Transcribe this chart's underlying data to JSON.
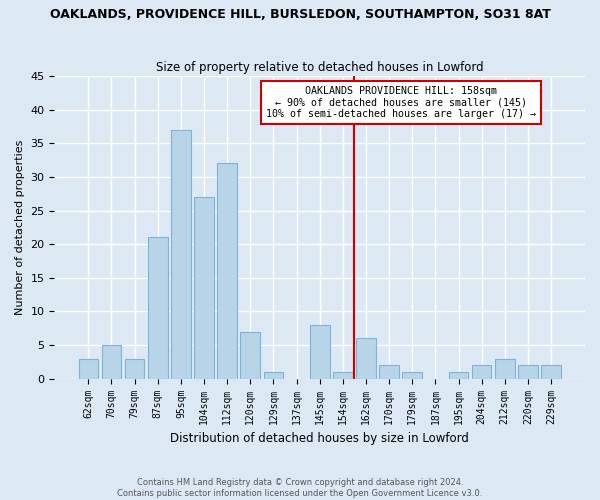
{
  "title": "OAKLANDS, PROVIDENCE HILL, BURSLEDON, SOUTHAMPTON, SO31 8AT",
  "subtitle": "Size of property relative to detached houses in Lowford",
  "xlabel": "Distribution of detached houses by size in Lowford",
  "ylabel": "Number of detached properties",
  "categories": [
    "62sqm",
    "70sqm",
    "79sqm",
    "87sqm",
    "95sqm",
    "104sqm",
    "112sqm",
    "120sqm",
    "129sqm",
    "137sqm",
    "145sqm",
    "154sqm",
    "162sqm",
    "170sqm",
    "179sqm",
    "187sqm",
    "195sqm",
    "204sqm",
    "212sqm",
    "220sqm",
    "229sqm"
  ],
  "values": [
    3,
    5,
    3,
    21,
    37,
    27,
    32,
    7,
    1,
    0,
    8,
    1,
    6,
    2,
    1,
    0,
    1,
    2,
    3,
    2,
    2
  ],
  "bar_color": "#b8d4e8",
  "bar_edge_color": "#7fb3d3",
  "vline_color": "#cc0000",
  "annotation_title": "OAKLANDS PROVIDENCE HILL: 158sqm",
  "annotation_line1": "← 90% of detached houses are smaller (145)",
  "annotation_line2": "10% of semi-detached houses are larger (17) →",
  "annotation_box_color": "#ffffff",
  "annotation_box_edge": "#cc0000",
  "ylim": [
    0,
    45
  ],
  "yticks": [
    0,
    5,
    10,
    15,
    20,
    25,
    30,
    35,
    40,
    45
  ],
  "background_color": "#dce9f5",
  "grid_color": "#ffffff",
  "footer_line1": "Contains HM Land Registry data © Crown copyright and database right 2024.",
  "footer_line2": "Contains public sector information licensed under the Open Government Licence v3.0."
}
